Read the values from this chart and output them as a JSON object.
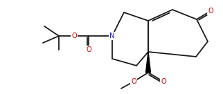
{
  "bg_color": "#ffffff",
  "line_color": "#1a1a1a",
  "atom_colors": {
    "O": "#cc0000",
    "N": "#2020cc",
    "C": "#1a1a1a"
  },
  "line_width": 1.3,
  "font_size": 7.2
}
